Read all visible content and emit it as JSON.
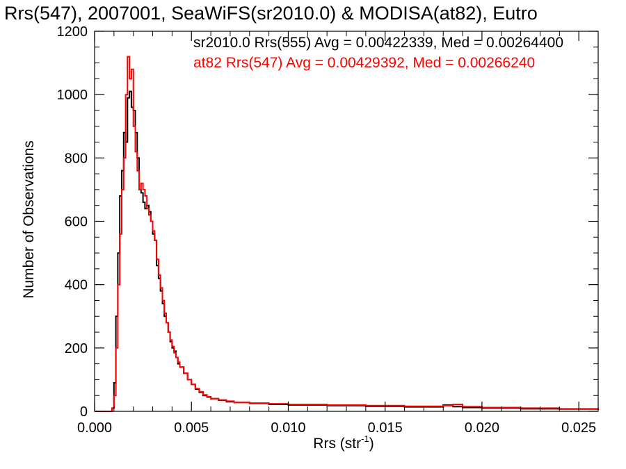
{
  "chart_data": {
    "type": "line",
    "title": "Rrs(547), 2007001, SeaWiFS(sr2010.0) & MODISA(at82), Eutro",
    "xlabel": "Rrs (str",
    "xlabel_sup": "-1",
    "xlabel_end": ")",
    "ylabel": "Number of Observations",
    "xlim": [
      0.0,
      0.026
    ],
    "ylim": [
      0,
      1200
    ],
    "xticks": [
      "0.000",
      "0.005",
      "0.010",
      "0.015",
      "0.020",
      "0.025"
    ],
    "xtick_values": [
      0.0,
      0.005,
      0.01,
      0.015,
      0.02,
      0.025
    ],
    "yticks": [
      "0",
      "200",
      "400",
      "600",
      "800",
      "1000",
      "1200"
    ],
    "ytick_values": [
      0,
      200,
      400,
      600,
      800,
      1000,
      1200
    ],
    "legend_placement": "top-right",
    "colors": {
      "series1": "#000000",
      "series2": "#ff0000",
      "axes": "#000000"
    },
    "series": [
      {
        "name": "sr2010.0 Rrs(555) Avg = 0.00422339, Med = 0.00264400",
        "color": "#000000",
        "x": [
          0.0,
          0.0009,
          0.001,
          0.0011,
          0.0012,
          0.0013,
          0.0014,
          0.0015,
          0.0016,
          0.0017,
          0.0018,
          0.0019,
          0.002,
          0.0021,
          0.0022,
          0.0023,
          0.0024,
          0.0025,
          0.0026,
          0.0027,
          0.0028,
          0.0029,
          0.003,
          0.0031,
          0.0032,
          0.0033,
          0.0034,
          0.0035,
          0.0036,
          0.0037,
          0.0038,
          0.0039,
          0.004,
          0.0041,
          0.0042,
          0.0043,
          0.0044,
          0.0046,
          0.0048,
          0.005,
          0.0052,
          0.0054,
          0.0056,
          0.0058,
          0.006,
          0.0064,
          0.0068,
          0.0072,
          0.008,
          0.009,
          0.01,
          0.012,
          0.014,
          0.016,
          0.018,
          0.0185,
          0.019,
          0.02,
          0.022,
          0.024,
          0.026
        ],
        "y": [
          0,
          10,
          90,
          300,
          500,
          680,
          760,
          880,
          850,
          990,
          1010,
          960,
          950,
          880,
          800,
          700,
          690,
          660,
          640,
          650,
          630,
          600,
          560,
          540,
          460,
          420,
          380,
          340,
          300,
          280,
          250,
          220,
          200,
          190,
          170,
          150,
          140,
          120,
          100,
          85,
          70,
          60,
          50,
          45,
          40,
          35,
          30,
          28,
          25,
          22,
          20,
          18,
          16,
          14,
          20,
          15,
          12,
          10,
          8,
          7,
          5
        ]
      },
      {
        "name": "at82 Rrs(547) Avg = 0.00429392, Med = 0.00266240",
        "color": "#ff0000",
        "x": [
          0.0,
          0.0009,
          0.001,
          0.0011,
          0.0012,
          0.0013,
          0.0014,
          0.0015,
          0.0016,
          0.0017,
          0.0018,
          0.0019,
          0.002,
          0.0021,
          0.0022,
          0.0023,
          0.0024,
          0.0025,
          0.0026,
          0.0027,
          0.0028,
          0.0029,
          0.003,
          0.0031,
          0.0032,
          0.0033,
          0.0034,
          0.0035,
          0.0036,
          0.0037,
          0.0038,
          0.0039,
          0.004,
          0.0041,
          0.0042,
          0.0043,
          0.0044,
          0.0046,
          0.0048,
          0.005,
          0.0052,
          0.0054,
          0.0056,
          0.0058,
          0.006,
          0.0064,
          0.0068,
          0.0072,
          0.008,
          0.009,
          0.01,
          0.012,
          0.014,
          0.016,
          0.018,
          0.0185,
          0.019,
          0.02,
          0.022,
          0.024,
          0.026
        ],
        "y": [
          0,
          10,
          50,
          200,
          400,
          560,
          700,
          800,
          1000,
          1120,
          1050,
          1080,
          900,
          820,
          760,
          700,
          720,
          700,
          680,
          640,
          620,
          600,
          570,
          540,
          480,
          430,
          390,
          350,
          310,
          280,
          250,
          225,
          205,
          185,
          170,
          155,
          140,
          120,
          100,
          85,
          72,
          62,
          52,
          46,
          40,
          36,
          32,
          28,
          26,
          24,
          22,
          20,
          18,
          16,
          18,
          22,
          15,
          12,
          10,
          8,
          6
        ]
      }
    ]
  }
}
